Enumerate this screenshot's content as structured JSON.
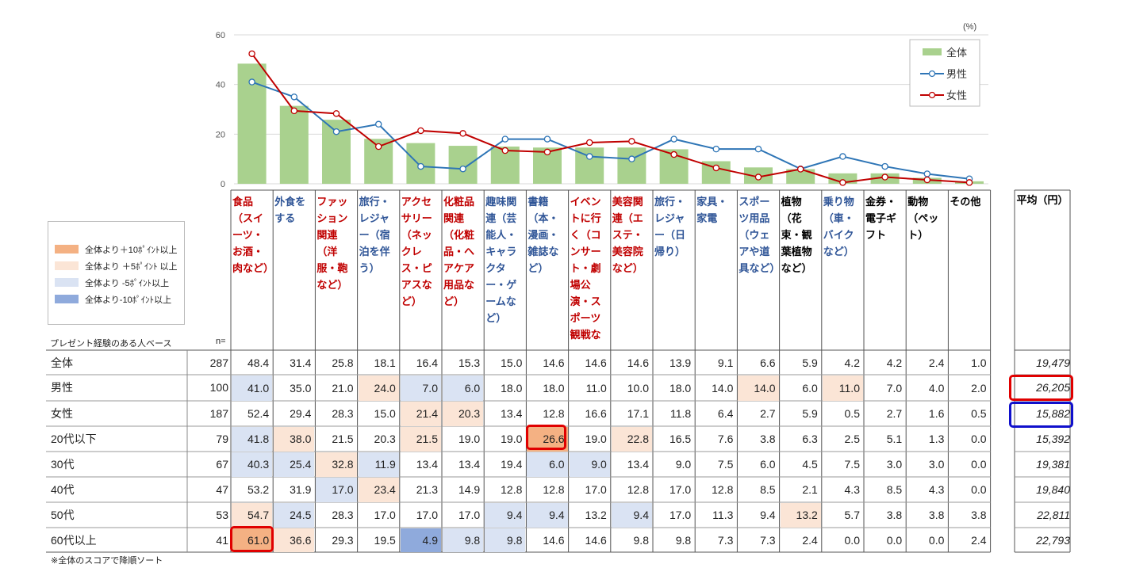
{
  "chart_data": {
    "type": "bar",
    "unit_label": "(%)",
    "ylim": [
      0,
      60
    ],
    "yticks": [
      0,
      20,
      40,
      60
    ],
    "categories": [
      "食品（スイーツ・お酒・肉など）",
      "外食をする",
      "ファッション関連（洋服・鞄など）",
      "旅行・レジャー（宿泊を伴う）",
      "アクセサリー（ネックレス・ピアスなど）",
      "化粧品関連（化粧品・ヘアケア用品など）",
      "趣味関連（芸能人・キャラクター・ゲームなど）",
      "書籍（本・漫画・雑誌など）",
      "イベントに行く（コンサート・劇場公演・スポーツ観戦など）",
      "美容関連（エステ・美容院など）",
      "旅行・レジャー（日帰り）",
      "家具・家電",
      "スポーツ用品（ウェアや道具など）",
      "植物（花束・観葉植物など）",
      "乗り物（車・バイクなど）",
      "金券・電子ギフト",
      "動物（ペット）",
      "その他"
    ],
    "series": [
      {
        "name": "全体",
        "type": "bar",
        "color": "#a9d18e",
        "values": [
          48.4,
          31.4,
          25.8,
          18.1,
          16.4,
          15.3,
          15.0,
          14.6,
          14.6,
          14.6,
          13.9,
          9.1,
          6.6,
          5.9,
          4.2,
          4.2,
          2.4,
          1.0
        ]
      },
      {
        "name": "男性",
        "type": "line",
        "color": "#2e75b6",
        "values": [
          41.0,
          35.0,
          21.0,
          24.0,
          7.0,
          6.0,
          18.0,
          18.0,
          11.0,
          10.0,
          18.0,
          14.0,
          14.0,
          6.0,
          11.0,
          7.0,
          4.0,
          2.0
        ]
      },
      {
        "name": "女性",
        "type": "line",
        "color": "#c00000",
        "values": [
          52.4,
          29.4,
          28.3,
          15.0,
          21.4,
          20.3,
          13.4,
          12.8,
          16.6,
          17.1,
          11.8,
          6.4,
          2.7,
          5.9,
          0.5,
          2.7,
          1.6,
          0.5
        ]
      }
    ],
    "legend": "top-right"
  },
  "table": {
    "headers": [
      {
        "text": "食品（スイーツ・お酒・肉など）",
        "color": "red"
      },
      {
        "text": "外食をする",
        "color": "blue"
      },
      {
        "text": "ファッション関連（洋服・鞄など）",
        "color": "red"
      },
      {
        "text": "旅行・レジャー（宿泊を伴う）",
        "color": "blue"
      },
      {
        "text": "アクセサリー（ネックレス・ピアスなど）",
        "color": "red"
      },
      {
        "text": "化粧品関連（化粧品・ヘアケア用品など）",
        "color": "red"
      },
      {
        "text": "趣味関連（芸能人・キャラクター・ゲームなど）",
        "color": "blue"
      },
      {
        "text": "書籍（本・漫画・雑誌など）",
        "color": "blue"
      },
      {
        "text": "イベントに行く（コンサート・劇場公演・スポーツ観戦など）",
        "color": "red"
      },
      {
        "text": "美容関連（エステ・美容院など）",
        "color": "red"
      },
      {
        "text": "旅行・レジャー（日帰り）",
        "color": "blue"
      },
      {
        "text": "家具・家電",
        "color": "blue"
      },
      {
        "text": "スポーツ用品（ウェアや道具など）",
        "color": "blue"
      },
      {
        "text": "植物（花束・観葉植物など）",
        "color": "black"
      },
      {
        "text": "乗り物（車・バイクなど）",
        "color": "blue"
      },
      {
        "text": "金券・電子ギフト",
        "color": "black"
      },
      {
        "text": "動物（ペット）",
        "color": "black"
      },
      {
        "text": "その他",
        "color": "black"
      }
    ],
    "avg_header": "平均（円）",
    "base_label": "プレゼント経験のある人ベース",
    "n_label": "n=",
    "footnote": "※全体のスコアで降順ソート",
    "legend": [
      {
        "label": "全体より＋10ﾎﾟｲﾝﾄ以上",
        "color": "#f4b183"
      },
      {
        "label": "全体より ＋5ﾎﾟｲﾝﾄ 以上",
        "color": "#fbe5d6"
      },
      {
        "label": "全体より -5ﾎﾟｲﾝﾄ以上",
        "color": "#dae3f3"
      },
      {
        "label": "全体より-10ﾎﾟｲﾝﾄ以上",
        "color": "#8faadc"
      }
    ],
    "rows": [
      {
        "label": "全体",
        "n": "287",
        "avg": "19,479",
        "values": [
          "48.4",
          "31.4",
          "25.8",
          "18.1",
          "16.4",
          "15.3",
          "15.0",
          "14.6",
          "14.6",
          "14.6",
          "13.9",
          "9.1",
          "6.6",
          "5.9",
          "4.2",
          "4.2",
          "2.4",
          "1.0"
        ]
      },
      {
        "label": "男性",
        "n": "100",
        "avg": "26,205",
        "values": [
          "41.0",
          "35.0",
          "21.0",
          "24.0",
          "7.0",
          "6.0",
          "18.0",
          "18.0",
          "11.0",
          "10.0",
          "18.0",
          "14.0",
          "14.0",
          "6.0",
          "11.0",
          "7.0",
          "4.0",
          "2.0"
        ]
      },
      {
        "label": "女性",
        "n": "187",
        "avg": "15,882",
        "values": [
          "52.4",
          "29.4",
          "28.3",
          "15.0",
          "21.4",
          "20.3",
          "13.4",
          "12.8",
          "16.6",
          "17.1",
          "11.8",
          "6.4",
          "2.7",
          "5.9",
          "0.5",
          "2.7",
          "1.6",
          "0.5"
        ]
      },
      {
        "label": "20代以下",
        "n": "79",
        "avg": "15,392",
        "values": [
          "41.8",
          "38.0",
          "21.5",
          "20.3",
          "21.5",
          "19.0",
          "19.0",
          "26.6",
          "19.0",
          "22.8",
          "16.5",
          "7.6",
          "3.8",
          "6.3",
          "2.5",
          "5.1",
          "1.3",
          "0.0"
        ]
      },
      {
        "label": "30代",
        "n": "67",
        "avg": "19,381",
        "values": [
          "40.3",
          "25.4",
          "32.8",
          "11.9",
          "13.4",
          "13.4",
          "19.4",
          "6.0",
          "9.0",
          "13.4",
          "9.0",
          "7.5",
          "6.0",
          "4.5",
          "7.5",
          "3.0",
          "3.0",
          "0.0"
        ]
      },
      {
        "label": "40代",
        "n": "47",
        "avg": "19,840",
        "values": [
          "53.2",
          "31.9",
          "17.0",
          "23.4",
          "21.3",
          "14.9",
          "12.8",
          "12.8",
          "17.0",
          "12.8",
          "17.0",
          "12.8",
          "8.5",
          "2.1",
          "4.3",
          "8.5",
          "4.3",
          "0.0"
        ]
      },
      {
        "label": "50代",
        "n": "53",
        "avg": "22,811",
        "values": [
          "54.7",
          "24.5",
          "28.3",
          "17.0",
          "17.0",
          "17.0",
          "9.4",
          "9.4",
          "13.2",
          "9.4",
          "17.0",
          "11.3",
          "9.4",
          "13.2",
          "5.7",
          "3.8",
          "3.8",
          "3.8"
        ]
      },
      {
        "label": "60代以上",
        "n": "41",
        "avg": "22,793",
        "values": [
          "61.0",
          "36.6",
          "29.3",
          "19.5",
          "4.9",
          "9.8",
          "9.8",
          "14.6",
          "14.6",
          "9.8",
          "9.8",
          "7.3",
          "7.3",
          "2.4",
          "0.0",
          "0.0",
          "0.0",
          "2.4"
        ]
      }
    ]
  }
}
